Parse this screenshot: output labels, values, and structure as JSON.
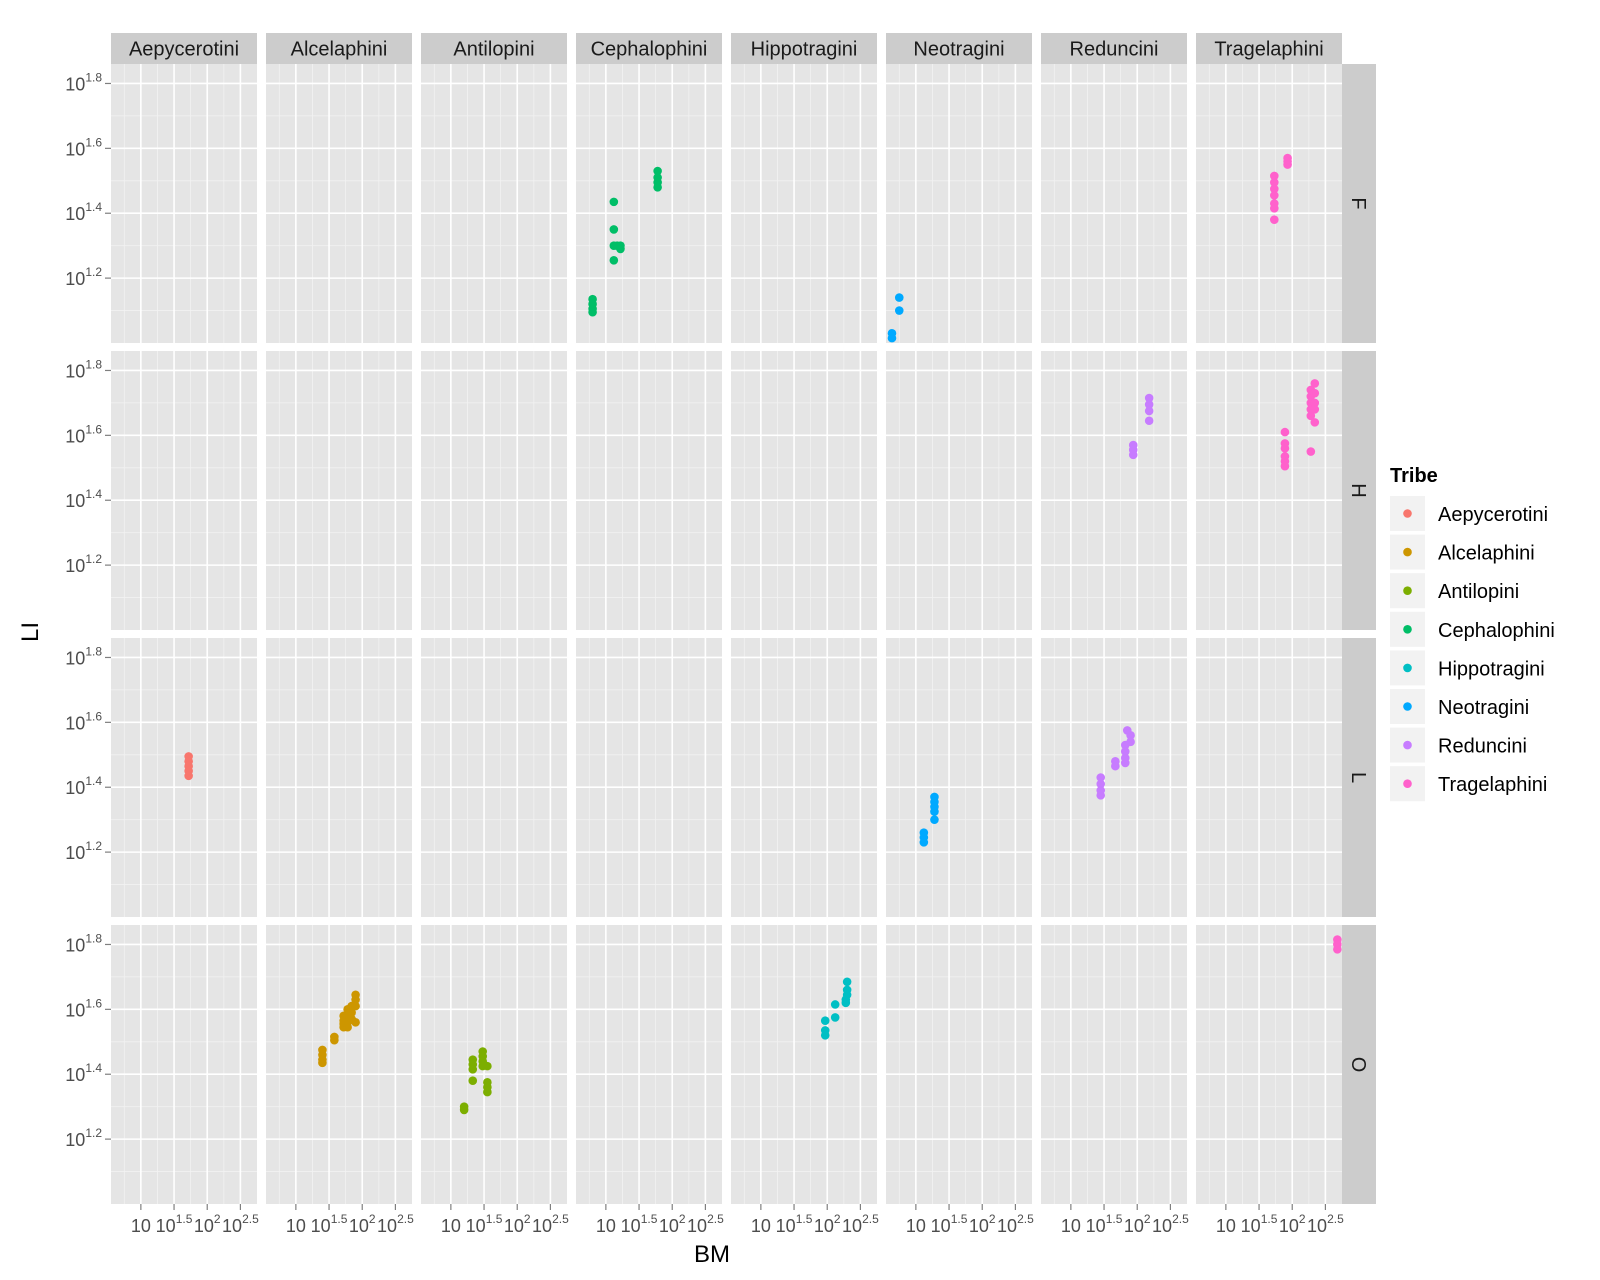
{
  "chart_data": {
    "type": "scatter",
    "facet_columns": [
      "Aepycerotini",
      "Alcelaphini",
      "Antilopini",
      "Cephalophini",
      "Hippotragini",
      "Neotragini",
      "Reduncini",
      "Tragelaphini"
    ],
    "facet_rows": [
      "F",
      "H",
      "L",
      "O"
    ],
    "xlabel": "BM",
    "ylabel": "LI",
    "x_scale": "log10",
    "y_scale": "log10",
    "xlim_log10": [
      0.55,
      2.75
    ],
    "ylim_log10": [
      1.0,
      1.86
    ],
    "x_ticks_log10": [
      1,
      1.5,
      2,
      2.5
    ],
    "y_ticks_log10": [
      1.2,
      1.4,
      1.6,
      1.8
    ],
    "x_tick_base": "10",
    "x_tick_exponents": [
      "",
      "1.5",
      "2",
      "2.5"
    ],
    "y_tick_base": "10",
    "y_tick_exponents": [
      "1.2",
      "1.4",
      "1.6",
      "1.8"
    ],
    "grid": true,
    "legend": {
      "title": "Tribe",
      "position": "right",
      "entries": [
        {
          "label": "Aepycerotini",
          "color": "#F8766D"
        },
        {
          "label": "Alcelaphini",
          "color": "#CD9600"
        },
        {
          "label": "Antilopini",
          "color": "#7CAE00"
        },
        {
          "label": "Cephalophini",
          "color": "#00BE67"
        },
        {
          "label": "Hippotragini",
          "color": "#00BFC4"
        },
        {
          "label": "Neotragini",
          "color": "#00A9FF"
        },
        {
          "label": "Reduncini",
          "color": "#C77CFF"
        },
        {
          "label": "Tragelaphini",
          "color": "#FF61CC"
        }
      ]
    },
    "points": [
      {
        "tribe": "Cephalophini",
        "row": "F",
        "x": 0.8,
        "y": 1.135
      },
      {
        "tribe": "Cephalophini",
        "row": "F",
        "x": 0.8,
        "y": 1.12
      },
      {
        "tribe": "Cephalophini",
        "row": "F",
        "x": 0.8,
        "y": 1.105
      },
      {
        "tribe": "Cephalophini",
        "row": "F",
        "x": 0.8,
        "y": 1.095
      },
      {
        "tribe": "Cephalophini",
        "row": "F",
        "x": 1.12,
        "y": 1.435
      },
      {
        "tribe": "Cephalophini",
        "row": "F",
        "x": 1.12,
        "y": 1.35
      },
      {
        "tribe": "Cephalophini",
        "row": "F",
        "x": 1.12,
        "y": 1.3
      },
      {
        "tribe": "Cephalophini",
        "row": "F",
        "x": 1.12,
        "y": 1.255
      },
      {
        "tribe": "Cephalophini",
        "row": "F",
        "x": 1.17,
        "y": 1.3
      },
      {
        "tribe": "Cephalophini",
        "row": "F",
        "x": 1.22,
        "y": 1.3
      },
      {
        "tribe": "Cephalophini",
        "row": "F",
        "x": 1.22,
        "y": 1.29
      },
      {
        "tribe": "Cephalophini",
        "row": "F",
        "x": 1.78,
        "y": 1.53
      },
      {
        "tribe": "Cephalophini",
        "row": "F",
        "x": 1.78,
        "y": 1.51
      },
      {
        "tribe": "Cephalophini",
        "row": "F",
        "x": 1.78,
        "y": 1.495
      },
      {
        "tribe": "Cephalophini",
        "row": "F",
        "x": 1.78,
        "y": 1.48
      },
      {
        "tribe": "Neotragini",
        "row": "F",
        "x": 0.64,
        "y": 1.03
      },
      {
        "tribe": "Neotragini",
        "row": "F",
        "x": 0.64,
        "y": 1.015
      },
      {
        "tribe": "Neotragini",
        "row": "F",
        "x": 0.75,
        "y": 1.14
      },
      {
        "tribe": "Neotragini",
        "row": "F",
        "x": 0.75,
        "y": 1.1
      },
      {
        "tribe": "Tragelaphini",
        "row": "F",
        "x": 1.73,
        "y": 1.515
      },
      {
        "tribe": "Tragelaphini",
        "row": "F",
        "x": 1.73,
        "y": 1.495
      },
      {
        "tribe": "Tragelaphini",
        "row": "F",
        "x": 1.73,
        "y": 1.475
      },
      {
        "tribe": "Tragelaphini",
        "row": "F",
        "x": 1.73,
        "y": 1.455
      },
      {
        "tribe": "Tragelaphini",
        "row": "F",
        "x": 1.73,
        "y": 1.43
      },
      {
        "tribe": "Tragelaphini",
        "row": "F",
        "x": 1.73,
        "y": 1.415
      },
      {
        "tribe": "Tragelaphini",
        "row": "F",
        "x": 1.73,
        "y": 1.38
      },
      {
        "tribe": "Tragelaphini",
        "row": "F",
        "x": 1.93,
        "y": 1.57
      },
      {
        "tribe": "Tragelaphini",
        "row": "F",
        "x": 1.93,
        "y": 1.56
      },
      {
        "tribe": "Tragelaphini",
        "row": "F",
        "x": 1.93,
        "y": 1.55
      },
      {
        "tribe": "Reduncini",
        "row": "H",
        "x": 1.94,
        "y": 1.57
      },
      {
        "tribe": "Reduncini",
        "row": "H",
        "x": 1.94,
        "y": 1.555
      },
      {
        "tribe": "Reduncini",
        "row": "H",
        "x": 1.94,
        "y": 1.54
      },
      {
        "tribe": "Reduncini",
        "row": "H",
        "x": 2.18,
        "y": 1.715
      },
      {
        "tribe": "Reduncini",
        "row": "H",
        "x": 2.18,
        "y": 1.695
      },
      {
        "tribe": "Reduncini",
        "row": "H",
        "x": 2.18,
        "y": 1.675
      },
      {
        "tribe": "Reduncini",
        "row": "H",
        "x": 2.18,
        "y": 1.645
      },
      {
        "tribe": "Tragelaphini",
        "row": "H",
        "x": 1.89,
        "y": 1.61
      },
      {
        "tribe": "Tragelaphini",
        "row": "H",
        "x": 1.89,
        "y": 1.575
      },
      {
        "tribe": "Tragelaphini",
        "row": "H",
        "x": 1.89,
        "y": 1.56
      },
      {
        "tribe": "Tragelaphini",
        "row": "H",
        "x": 1.89,
        "y": 1.535
      },
      {
        "tribe": "Tragelaphini",
        "row": "H",
        "x": 1.89,
        "y": 1.52
      },
      {
        "tribe": "Tragelaphini",
        "row": "H",
        "x": 1.89,
        "y": 1.505
      },
      {
        "tribe": "Tragelaphini",
        "row": "H",
        "x": 2.28,
        "y": 1.55
      },
      {
        "tribe": "Tragelaphini",
        "row": "H",
        "x": 2.28,
        "y": 1.74
      },
      {
        "tribe": "Tragelaphini",
        "row": "H",
        "x": 2.28,
        "y": 1.72
      },
      {
        "tribe": "Tragelaphini",
        "row": "H",
        "x": 2.28,
        "y": 1.7
      },
      {
        "tribe": "Tragelaphini",
        "row": "H",
        "x": 2.28,
        "y": 1.68
      },
      {
        "tribe": "Tragelaphini",
        "row": "H",
        "x": 2.28,
        "y": 1.66
      },
      {
        "tribe": "Tragelaphini",
        "row": "H",
        "x": 2.34,
        "y": 1.76
      },
      {
        "tribe": "Tragelaphini",
        "row": "H",
        "x": 2.34,
        "y": 1.73
      },
      {
        "tribe": "Tragelaphini",
        "row": "H",
        "x": 2.34,
        "y": 1.7
      },
      {
        "tribe": "Tragelaphini",
        "row": "H",
        "x": 2.34,
        "y": 1.68
      },
      {
        "tribe": "Tragelaphini",
        "row": "H",
        "x": 2.34,
        "y": 1.64
      },
      {
        "tribe": "Aepycerotini",
        "row": "L",
        "x": 1.72,
        "y": 1.495
      },
      {
        "tribe": "Aepycerotini",
        "row": "L",
        "x": 1.72,
        "y": 1.48
      },
      {
        "tribe": "Aepycerotini",
        "row": "L",
        "x": 1.72,
        "y": 1.465
      },
      {
        "tribe": "Aepycerotini",
        "row": "L",
        "x": 1.72,
        "y": 1.45
      },
      {
        "tribe": "Aepycerotini",
        "row": "L",
        "x": 1.72,
        "y": 1.435
      },
      {
        "tribe": "Neotragini",
        "row": "L",
        "x": 1.12,
        "y": 1.26
      },
      {
        "tribe": "Neotragini",
        "row": "L",
        "x": 1.12,
        "y": 1.245
      },
      {
        "tribe": "Neotragini",
        "row": "L",
        "x": 1.12,
        "y": 1.23
      },
      {
        "tribe": "Neotragini",
        "row": "L",
        "x": 1.28,
        "y": 1.37
      },
      {
        "tribe": "Neotragini",
        "row": "L",
        "x": 1.28,
        "y": 1.355
      },
      {
        "tribe": "Neotragini",
        "row": "L",
        "x": 1.28,
        "y": 1.34
      },
      {
        "tribe": "Neotragini",
        "row": "L",
        "x": 1.28,
        "y": 1.325
      },
      {
        "tribe": "Neotragini",
        "row": "L",
        "x": 1.28,
        "y": 1.3
      },
      {
        "tribe": "Reduncini",
        "row": "L",
        "x": 1.45,
        "y": 1.43
      },
      {
        "tribe": "Reduncini",
        "row": "L",
        "x": 1.45,
        "y": 1.41
      },
      {
        "tribe": "Reduncini",
        "row": "L",
        "x": 1.45,
        "y": 1.39
      },
      {
        "tribe": "Reduncini",
        "row": "L",
        "x": 1.45,
        "y": 1.375
      },
      {
        "tribe": "Reduncini",
        "row": "L",
        "x": 1.67,
        "y": 1.48
      },
      {
        "tribe": "Reduncini",
        "row": "L",
        "x": 1.67,
        "y": 1.465
      },
      {
        "tribe": "Reduncini",
        "row": "L",
        "x": 1.82,
        "y": 1.53
      },
      {
        "tribe": "Reduncini",
        "row": "L",
        "x": 1.82,
        "y": 1.51
      },
      {
        "tribe": "Reduncini",
        "row": "L",
        "x": 1.82,
        "y": 1.49
      },
      {
        "tribe": "Reduncini",
        "row": "L",
        "x": 1.82,
        "y": 1.475
      },
      {
        "tribe": "Reduncini",
        "row": "L",
        "x": 1.85,
        "y": 1.575
      },
      {
        "tribe": "Reduncini",
        "row": "L",
        "x": 1.9,
        "y": 1.56
      },
      {
        "tribe": "Reduncini",
        "row": "L",
        "x": 1.9,
        "y": 1.54
      },
      {
        "tribe": "Alcelaphini",
        "row": "O",
        "x": 1.4,
        "y": 1.475
      },
      {
        "tribe": "Alcelaphini",
        "row": "O",
        "x": 1.4,
        "y": 1.46
      },
      {
        "tribe": "Alcelaphini",
        "row": "O",
        "x": 1.4,
        "y": 1.445
      },
      {
        "tribe": "Alcelaphini",
        "row": "O",
        "x": 1.4,
        "y": 1.435
      },
      {
        "tribe": "Alcelaphini",
        "row": "O",
        "x": 1.58,
        "y": 1.515
      },
      {
        "tribe": "Alcelaphini",
        "row": "O",
        "x": 1.58,
        "y": 1.505
      },
      {
        "tribe": "Alcelaphini",
        "row": "O",
        "x": 1.72,
        "y": 1.58
      },
      {
        "tribe": "Alcelaphini",
        "row": "O",
        "x": 1.72,
        "y": 1.565
      },
      {
        "tribe": "Alcelaphini",
        "row": "O",
        "x": 1.72,
        "y": 1.555
      },
      {
        "tribe": "Alcelaphini",
        "row": "O",
        "x": 1.72,
        "y": 1.545
      },
      {
        "tribe": "Alcelaphini",
        "row": "O",
        "x": 1.78,
        "y": 1.6
      },
      {
        "tribe": "Alcelaphini",
        "row": "O",
        "x": 1.78,
        "y": 1.58
      },
      {
        "tribe": "Alcelaphini",
        "row": "O",
        "x": 1.78,
        "y": 1.56
      },
      {
        "tribe": "Alcelaphini",
        "row": "O",
        "x": 1.78,
        "y": 1.545
      },
      {
        "tribe": "Alcelaphini",
        "row": "O",
        "x": 1.84,
        "y": 1.61
      },
      {
        "tribe": "Alcelaphini",
        "row": "O",
        "x": 1.84,
        "y": 1.59
      },
      {
        "tribe": "Alcelaphini",
        "row": "O",
        "x": 1.84,
        "y": 1.57
      },
      {
        "tribe": "Alcelaphini",
        "row": "O",
        "x": 1.9,
        "y": 1.645
      },
      {
        "tribe": "Alcelaphini",
        "row": "O",
        "x": 1.9,
        "y": 1.63
      },
      {
        "tribe": "Alcelaphini",
        "row": "O",
        "x": 1.9,
        "y": 1.61
      },
      {
        "tribe": "Alcelaphini",
        "row": "O",
        "x": 1.9,
        "y": 1.56
      },
      {
        "tribe": "Antilopini",
        "row": "O",
        "x": 1.2,
        "y": 1.3
      },
      {
        "tribe": "Antilopini",
        "row": "O",
        "x": 1.2,
        "y": 1.29
      },
      {
        "tribe": "Antilopini",
        "row": "O",
        "x": 1.33,
        "y": 1.445
      },
      {
        "tribe": "Antilopini",
        "row": "O",
        "x": 1.33,
        "y": 1.43
      },
      {
        "tribe": "Antilopini",
        "row": "O",
        "x": 1.33,
        "y": 1.415
      },
      {
        "tribe": "Antilopini",
        "row": "O",
        "x": 1.33,
        "y": 1.38
      },
      {
        "tribe": "Antilopini",
        "row": "O",
        "x": 1.48,
        "y": 1.47
      },
      {
        "tribe": "Antilopini",
        "row": "O",
        "x": 1.48,
        "y": 1.455
      },
      {
        "tribe": "Antilopini",
        "row": "O",
        "x": 1.48,
        "y": 1.44
      },
      {
        "tribe": "Antilopini",
        "row": "O",
        "x": 1.48,
        "y": 1.425
      },
      {
        "tribe": "Antilopini",
        "row": "O",
        "x": 1.55,
        "y": 1.425
      },
      {
        "tribe": "Antilopini",
        "row": "O",
        "x": 1.55,
        "y": 1.375
      },
      {
        "tribe": "Antilopini",
        "row": "O",
        "x": 1.55,
        "y": 1.36
      },
      {
        "tribe": "Antilopini",
        "row": "O",
        "x": 1.55,
        "y": 1.345
      },
      {
        "tribe": "Hippotragini",
        "row": "O",
        "x": 1.97,
        "y": 1.565
      },
      {
        "tribe": "Hippotragini",
        "row": "O",
        "x": 1.97,
        "y": 1.535
      },
      {
        "tribe": "Hippotragini",
        "row": "O",
        "x": 1.97,
        "y": 1.52
      },
      {
        "tribe": "Hippotragini",
        "row": "O",
        "x": 2.12,
        "y": 1.615
      },
      {
        "tribe": "Hippotragini",
        "row": "O",
        "x": 2.12,
        "y": 1.575
      },
      {
        "tribe": "Hippotragini",
        "row": "O",
        "x": 2.3,
        "y": 1.685
      },
      {
        "tribe": "Hippotragini",
        "row": "O",
        "x": 2.3,
        "y": 1.66
      },
      {
        "tribe": "Hippotragini",
        "row": "O",
        "x": 2.3,
        "y": 1.645
      },
      {
        "tribe": "Hippotragini",
        "row": "O",
        "x": 2.28,
        "y": 1.63
      },
      {
        "tribe": "Hippotragini",
        "row": "O",
        "x": 2.28,
        "y": 1.62
      },
      {
        "tribe": "Tragelaphini",
        "row": "O",
        "x": 2.68,
        "y": 1.815
      },
      {
        "tribe": "Tragelaphini",
        "row": "O",
        "x": 2.68,
        "y": 1.8
      },
      {
        "tribe": "Tragelaphini",
        "row": "O",
        "x": 2.68,
        "y": 1.785
      }
    ]
  }
}
